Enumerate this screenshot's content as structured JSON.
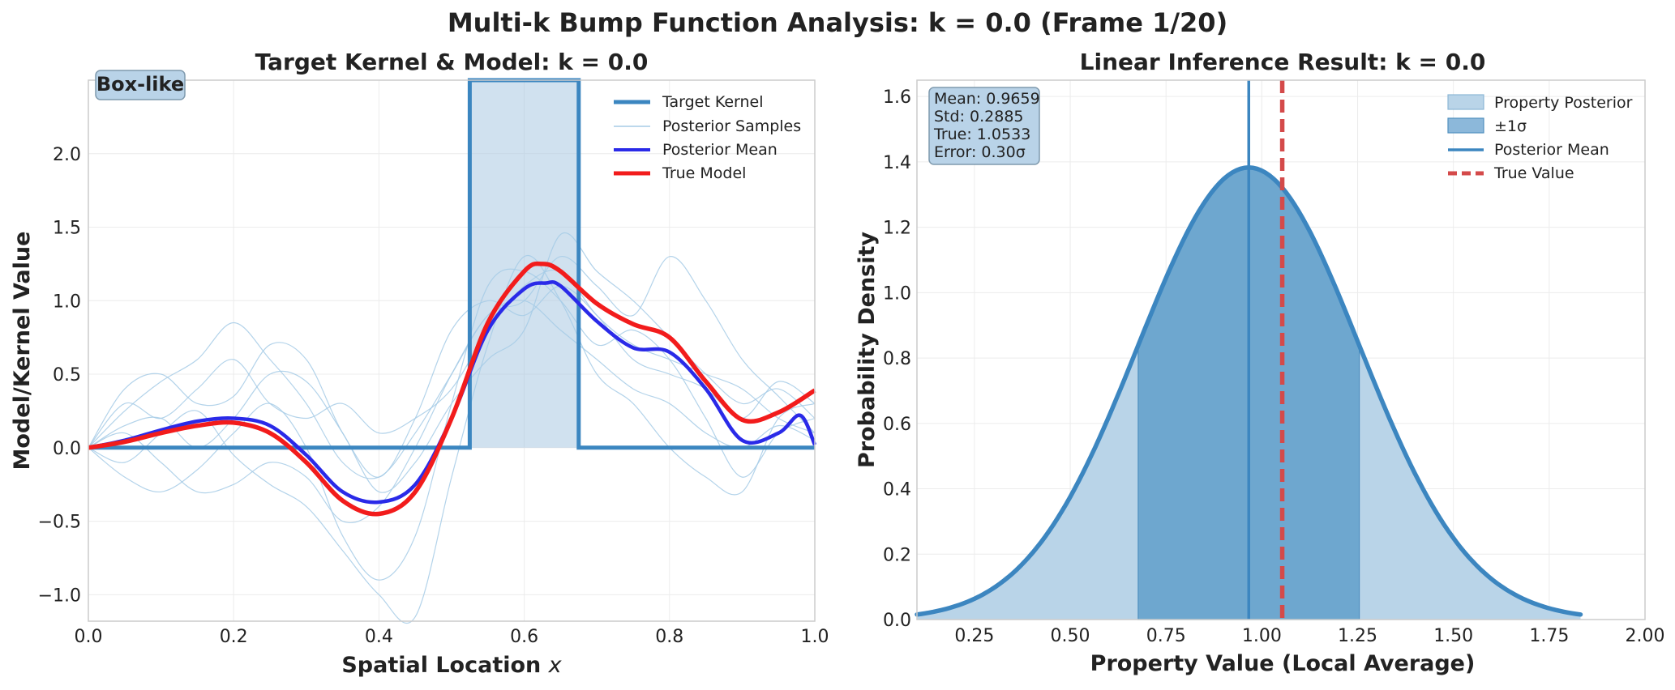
{
  "figure": {
    "suptitle": "Multi-k Bump Function Analysis: k = 0.0 (Frame 1/20)"
  },
  "colors": {
    "kernel": "#3b86c0",
    "kernel_fill": "#a9c9e2",
    "samples": "#a6cbe6",
    "posterior_mean_left": "#2a2ae8",
    "true_model": "#f21c1c",
    "density": "#3c86c0",
    "density_fill": "#b9d4e8",
    "sigma_fill": "#6ea7cf",
    "true_value": "#d44a4a",
    "stats_box": "#b9d3e8"
  },
  "chart_data": [
    {
      "type": "line",
      "title": "Target Kernel & Model: k = 0.0",
      "xlabel": "Spatial Location x",
      "ylabel": "Model/Kernel Value",
      "xlim": [
        0.0,
        1.0
      ],
      "ylim": [
        -1.18,
        2.5
      ],
      "xticks": [
        "0.0",
        "0.2",
        "0.4",
        "0.6",
        "0.8",
        "1.0"
      ],
      "yticks": [
        "−1.0",
        "−0.5",
        "0.0",
        "0.5",
        "1.0",
        "1.5",
        "2.0"
      ],
      "grid": true,
      "legend_position": "top-right",
      "badge": "Box-like",
      "legend": [
        "Target Kernel",
        "Posterior Samples",
        "Posterior Mean",
        "True Model"
      ],
      "kernel": {
        "box_start": 0.525,
        "box_end": 0.675,
        "height": 2.5,
        "baseline": 0.0
      },
      "series": [
        {
          "name": "True Model",
          "x": [
            0.0,
            0.05,
            0.1,
            0.15,
            0.2,
            0.25,
            0.3,
            0.35,
            0.4,
            0.45,
            0.5,
            0.55,
            0.6,
            0.625,
            0.65,
            0.7,
            0.75,
            0.8,
            0.85,
            0.9,
            0.95,
            1.0
          ],
          "y": [
            0.0,
            0.04,
            0.1,
            0.15,
            0.17,
            0.1,
            -0.1,
            -0.36,
            -0.45,
            -0.3,
            0.2,
            0.85,
            1.2,
            1.25,
            1.2,
            0.98,
            0.84,
            0.75,
            0.45,
            0.19,
            0.24,
            0.39
          ]
        },
        {
          "name": "Posterior Mean",
          "x": [
            0.0,
            0.05,
            0.1,
            0.15,
            0.2,
            0.25,
            0.3,
            0.35,
            0.4,
            0.45,
            0.5,
            0.55,
            0.6,
            0.63,
            0.65,
            0.7,
            0.75,
            0.8,
            0.85,
            0.9,
            0.95,
            0.98,
            1.0
          ],
          "y": [
            0.0,
            0.05,
            0.12,
            0.18,
            0.2,
            0.15,
            -0.05,
            -0.3,
            -0.37,
            -0.25,
            0.2,
            0.8,
            1.08,
            1.12,
            1.1,
            0.86,
            0.68,
            0.65,
            0.4,
            0.05,
            0.1,
            0.22,
            0.02
          ]
        }
      ],
      "samples": [
        {
          "x": [
            0.0,
            0.05,
            0.1,
            0.15,
            0.2,
            0.25,
            0.3,
            0.35,
            0.4,
            0.45,
            0.5,
            0.55,
            0.6,
            0.65,
            0.7,
            0.75,
            0.8,
            0.85,
            0.9,
            0.95,
            1.0
          ],
          "y": [
            0.0,
            0.25,
            0.45,
            0.6,
            0.85,
            0.6,
            0.3,
            -0.1,
            -0.2,
            0.1,
            0.5,
            0.9,
            1.0,
            1.3,
            1.1,
            0.9,
            1.3,
            1.0,
            0.6,
            0.35,
            0.1
          ]
        },
        {
          "x": [
            0.0,
            0.05,
            0.1,
            0.15,
            0.2,
            0.25,
            0.3,
            0.35,
            0.4,
            0.45,
            0.5,
            0.55,
            0.6,
            0.65,
            0.7,
            0.75,
            0.8,
            0.85,
            0.9,
            0.95,
            1.0
          ],
          "y": [
            0.0,
            -0.2,
            -0.3,
            -0.15,
            0.1,
            0.3,
            0.0,
            -0.6,
            -0.9,
            -0.6,
            0.3,
            1.1,
            1.2,
            1.0,
            0.7,
            0.8,
            0.6,
            0.2,
            -0.2,
            0.1,
            0.2
          ]
        },
        {
          "x": [
            0.0,
            0.05,
            0.1,
            0.15,
            0.2,
            0.25,
            0.3,
            0.35,
            0.4,
            0.45,
            0.5,
            0.55,
            0.6,
            0.65,
            0.7,
            0.75,
            0.8,
            0.85,
            0.9,
            0.95,
            1.0
          ],
          "y": [
            0.0,
            0.4,
            0.5,
            0.3,
            0.35,
            0.7,
            0.6,
            0.1,
            -0.2,
            0.2,
            0.8,
            1.0,
            0.9,
            1.1,
            0.9,
            0.6,
            0.5,
            0.4,
            0.2,
            0.45,
            0.3
          ]
        },
        {
          "x": [
            0.0,
            0.05,
            0.1,
            0.15,
            0.2,
            0.25,
            0.3,
            0.35,
            0.4,
            0.45,
            0.5,
            0.55,
            0.6,
            0.65,
            0.7,
            0.75,
            0.8,
            0.85,
            0.9,
            0.95,
            1.0
          ],
          "y": [
            0.0,
            -0.1,
            0.1,
            0.25,
            -0.05,
            -0.25,
            -0.4,
            -0.7,
            -1.0,
            -1.15,
            -0.2,
            0.7,
            1.3,
            1.0,
            0.5,
            0.3,
            0.0,
            -0.2,
            -0.3,
            0.2,
            0.3
          ]
        },
        {
          "x": [
            0.0,
            0.05,
            0.1,
            0.15,
            0.2,
            0.25,
            0.3,
            0.35,
            0.4,
            0.45,
            0.5,
            0.55,
            0.6,
            0.65,
            0.7,
            0.75,
            0.8,
            0.85,
            0.9,
            0.95,
            1.0
          ],
          "y": [
            0.0,
            0.15,
            0.2,
            0.0,
            0.2,
            0.5,
            0.45,
            0.1,
            -0.3,
            -0.1,
            0.3,
            0.6,
            0.8,
            1.45,
            1.2,
            1.0,
            0.75,
            0.5,
            0.3,
            0.4,
            0.2
          ]
        },
        {
          "x": [
            0.0,
            0.05,
            0.1,
            0.15,
            0.2,
            0.25,
            0.3,
            0.35,
            0.4,
            0.45,
            0.5,
            0.55,
            0.6,
            0.65,
            0.7,
            0.75,
            0.8,
            0.85,
            0.9,
            0.95,
            1.0
          ],
          "y": [
            0.0,
            0.1,
            -0.1,
            -0.3,
            -0.25,
            -0.1,
            -0.2,
            -0.5,
            -0.4,
            0.0,
            0.5,
            0.9,
            1.0,
            0.8,
            0.6,
            0.4,
            0.3,
            0.1,
            0.0,
            0.15,
            0.05
          ]
        },
        {
          "x": [
            0.0,
            0.05,
            0.1,
            0.15,
            0.2,
            0.25,
            0.3,
            0.35,
            0.4,
            0.45,
            0.5,
            0.55,
            0.6,
            0.65,
            0.7,
            0.75,
            0.8,
            0.85,
            0.9,
            0.95,
            1.0
          ],
          "y": [
            0.0,
            0.3,
            0.2,
            0.4,
            0.6,
            0.3,
            0.2,
            0.3,
            0.1,
            0.2,
            0.4,
            0.8,
            1.1,
            1.2,
            0.9,
            0.7,
            0.6,
            0.5,
            0.4,
            0.2,
            0.1
          ]
        }
      ]
    },
    {
      "type": "area",
      "title": "Linear Inference Result: k = 0.0",
      "xlabel": "Property Value (Local Average)",
      "ylabel": "Probability Density",
      "xlim": [
        0.1,
        2.0
      ],
      "ylim": [
        0.0,
        1.65
      ],
      "xticks": [
        "0.25",
        "0.50",
        "0.75",
        "1.00",
        "1.25",
        "1.50",
        "1.75",
        "2.00"
      ],
      "yticks": [
        "0.0",
        "0.2",
        "0.4",
        "0.6",
        "0.8",
        "1.0",
        "1.2",
        "1.4",
        "1.6"
      ],
      "grid": true,
      "legend_position": "top-right",
      "legend": [
        "Property Posterior",
        "±1σ",
        "Posterior Mean",
        "True Value"
      ],
      "stats": [
        "Mean: 0.9659",
        "Std: 0.2885",
        "True: 1.0533",
        "Error: 0.30σ"
      ],
      "mean": 0.9659,
      "std": 0.2885,
      "true_value": 1.0533,
      "curve_range": [
        0.1,
        1.8317
      ]
    }
  ]
}
